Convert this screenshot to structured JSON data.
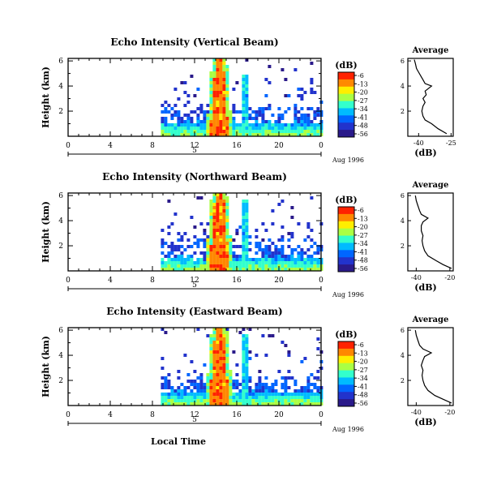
{
  "chart_data": {
    "type": "heatmap",
    "panels": [
      {
        "title": "Echo Intensity (Vertical Beam)",
        "ylabel": "Height (km)",
        "xticks": [
          "0",
          "4",
          "8",
          "12",
          "16",
          "20",
          "0"
        ],
        "yticks": [
          "2",
          "4",
          "6"
        ],
        "date_marker": "5",
        "date_label": "Aug 1996",
        "xlim": [
          0,
          24
        ],
        "ylim": [
          0,
          6.2
        ],
        "data_start_hour": 8.8,
        "main_plume": {
          "center": 14.2,
          "width": 0.9
        },
        "secondary_plume": {
          "center": 16.5,
          "width": 0.3,
          "top": 5.1
        },
        "avg_title": "Average",
        "avg_xticks": [
          "-40",
          "-25"
        ],
        "avg_xlabel": "(dB)",
        "avg_yticks": [
          "2",
          "4",
          "6"
        ],
        "avg_xlim": [
          -45,
          -24
        ],
        "avg_profile": [
          [
            -27.0,
            0.2
          ],
          [
            -31.0,
            0.6
          ],
          [
            -34.0,
            1.0
          ],
          [
            -37.0,
            1.3
          ],
          [
            -38.0,
            1.6
          ],
          [
            -38.5,
            2.0
          ],
          [
            -38.0,
            2.4
          ],
          [
            -37.0,
            2.7
          ],
          [
            -38.0,
            3.0
          ],
          [
            -36.5,
            3.3
          ],
          [
            -37.0,
            3.6
          ],
          [
            -34.0,
            4.0
          ],
          [
            -37.0,
            4.2
          ],
          [
            -38.0,
            4.5
          ],
          [
            -39.0,
            4.8
          ],
          [
            -40.0,
            5.1
          ],
          [
            -41.0,
            5.4
          ],
          [
            -41.5,
            5.8
          ],
          [
            -42.0,
            6.1
          ]
        ]
      },
      {
        "title": "Echo Intensity (Northward Beam)",
        "ylabel": "Height (km)",
        "xticks": [
          "0",
          "4",
          "8",
          "12",
          "16",
          "20",
          "0"
        ],
        "yticks": [
          "2",
          "4",
          "6"
        ],
        "date_marker": "5",
        "date_label": "Aug 1996",
        "xlim": [
          0,
          24
        ],
        "ylim": [
          0,
          6.2
        ],
        "data_start_hour": 8.8,
        "main_plume": {
          "center": 14.2,
          "width": 1.0
        },
        "secondary_plume": {
          "center": 16.6,
          "width": 0.35,
          "top": 5.8
        },
        "avg_title": "Average",
        "avg_xticks": [
          "-40",
          "-20"
        ],
        "avg_xlabel": "(dB)",
        "avg_yticks": [
          "2",
          "4",
          "6"
        ],
        "avg_xlim": [
          -45,
          -18
        ],
        "avg_profile": [
          [
            -19.0,
            0.2
          ],
          [
            -24.0,
            0.5
          ],
          [
            -28.0,
            0.8
          ],
          [
            -33.0,
            1.2
          ],
          [
            -35.0,
            1.6
          ],
          [
            -36.0,
            2.0
          ],
          [
            -36.5,
            2.4
          ],
          [
            -36.0,
            2.8
          ],
          [
            -37.0,
            3.2
          ],
          [
            -37.0,
            3.6
          ],
          [
            -36.0,
            3.9
          ],
          [
            -33.0,
            4.2
          ],
          [
            -37.0,
            4.5
          ],
          [
            -38.0,
            4.8
          ],
          [
            -39.0,
            5.2
          ],
          [
            -40.0,
            5.6
          ],
          [
            -40.5,
            6.0
          ]
        ]
      },
      {
        "title": "Echo Intensity (Eastward Beam)",
        "ylabel": "Height (km)",
        "xticks": [
          "0",
          "4",
          "8",
          "12",
          "16",
          "20",
          "0"
        ],
        "yticks": [
          "2",
          "4",
          "6"
        ],
        "date_marker": "5",
        "date_label": "Aug 1996",
        "xlabel": "Local Time",
        "xlim": [
          0,
          24
        ],
        "ylim": [
          0,
          6.2
        ],
        "data_start_hour": 8.8,
        "main_plume": {
          "center": 14.2,
          "width": 1.0
        },
        "secondary_plume": {
          "center": 16.6,
          "width": 0.35,
          "top": 5.8
        },
        "avg_title": "Average",
        "avg_xticks": [
          "-40",
          "-20"
        ],
        "avg_xlabel": "(dB)",
        "avg_yticks": [
          "2",
          "4",
          "6"
        ],
        "avg_xlim": [
          -45,
          -18
        ],
        "avg_profile": [
          [
            -19.0,
            0.2
          ],
          [
            -24.0,
            0.5
          ],
          [
            -29.0,
            0.8
          ],
          [
            -33.0,
            1.2
          ],
          [
            -35.0,
            1.6
          ],
          [
            -36.0,
            2.0
          ],
          [
            -36.5,
            2.4
          ],
          [
            -36.0,
            2.8
          ],
          [
            -37.0,
            3.2
          ],
          [
            -36.0,
            3.6
          ],
          [
            -35.0,
            3.9
          ],
          [
            -31.0,
            4.2
          ],
          [
            -36.0,
            4.5
          ],
          [
            -38.0,
            4.8
          ],
          [
            -39.0,
            5.2
          ],
          [
            -40.0,
            5.6
          ],
          [
            -40.5,
            6.0
          ]
        ]
      }
    ],
    "colorbar": {
      "label": "(dB)",
      "ticks": [
        "-6",
        "-13",
        "-20",
        "-27",
        "-34",
        "-41",
        "-48",
        "-56"
      ],
      "colors": [
        "#ff2200",
        "#ff8800",
        "#ffee00",
        "#aaff44",
        "#33ffcc",
        "#00bbff",
        "#0066ff",
        "#2233cc",
        "#2a1a8a"
      ]
    }
  }
}
